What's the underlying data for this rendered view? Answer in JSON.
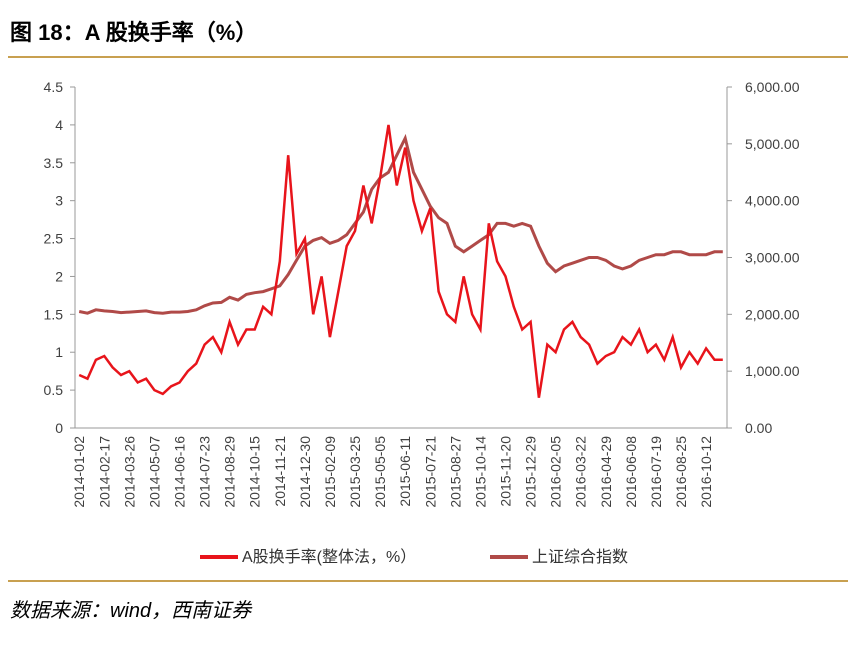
{
  "chart_data": {
    "type": "line",
    "title": "图 18：A 股换手率（%）",
    "source": "数据来源：wind，西南证券",
    "categories": [
      "2014-01-02",
      null,
      null,
      "2014-02-17",
      null,
      null,
      "2014-03-26",
      null,
      null,
      "2014-05-07",
      null,
      null,
      "2014-06-16",
      null,
      null,
      "2014-07-23",
      null,
      null,
      "2014-08-29",
      null,
      null,
      "2014-10-15",
      null,
      null,
      "2014-11-21",
      null,
      null,
      "2014-12-30",
      null,
      null,
      "2015-02-09",
      null,
      null,
      "2015-03-25",
      null,
      null,
      "2015-05-05",
      null,
      null,
      "2015-06-11",
      null,
      null,
      "2015-07-21",
      null,
      null,
      "2015-08-27",
      null,
      null,
      "2015-10-14",
      null,
      null,
      "2015-11-20",
      null,
      null,
      "2015-12-29",
      null,
      null,
      "2016-02-05",
      null,
      null,
      "2016-03-22",
      null,
      null,
      "2016-04-29",
      null,
      null,
      "2016-06-08",
      null,
      null,
      "2016-07-19",
      null,
      null,
      "2016-08-25",
      null,
      null,
      "2016-10-12",
      null,
      null
    ],
    "series": [
      {
        "name": "A股换手率(整体法，%）",
        "color": "#e8141b",
        "axis": "y",
        "values": [
          0.7,
          0.65,
          0.9,
          0.95,
          0.8,
          0.7,
          0.75,
          0.6,
          0.65,
          0.5,
          0.45,
          0.55,
          0.6,
          0.75,
          0.85,
          1.1,
          1.2,
          1.0,
          1.4,
          1.1,
          1.3,
          1.3,
          1.6,
          1.5,
          2.2,
          3.6,
          2.3,
          2.5,
          1.5,
          2.0,
          1.2,
          1.8,
          2.4,
          2.6,
          3.2,
          2.7,
          3.3,
          4.0,
          3.2,
          3.7,
          3.0,
          2.6,
          2.9,
          1.8,
          1.5,
          1.4,
          2.0,
          1.5,
          1.3,
          2.7,
          2.2,
          2.0,
          1.6,
          1.3,
          1.4,
          0.4,
          1.1,
          1.0,
          1.3,
          1.4,
          1.2,
          1.1,
          0.85,
          0.95,
          1.0,
          1.2,
          1.1,
          1.3,
          1.0,
          1.1,
          0.9,
          1.2,
          0.8,
          1.0,
          0.85,
          1.05,
          0.9,
          0.9
        ]
      },
      {
        "name": "上证综合指数",
        "color": "#b04a48",
        "axis": "y2",
        "values": [
          2050,
          2020,
          2080,
          2060,
          2050,
          2030,
          2040,
          2050,
          2060,
          2030,
          2020,
          2040,
          2040,
          2050,
          2080,
          2150,
          2200,
          2210,
          2300,
          2250,
          2350,
          2380,
          2400,
          2450,
          2500,
          2700,
          2950,
          3200,
          3300,
          3350,
          3250,
          3300,
          3400,
          3600,
          3800,
          4200,
          4400,
          4500,
          4800,
          5100,
          4500,
          4200,
          3900,
          3700,
          3600,
          3200,
          3100,
          3200,
          3300,
          3400,
          3600,
          3600,
          3550,
          3600,
          3550,
          3200,
          2900,
          2750,
          2850,
          2900,
          2950,
          3000,
          3000,
          2950,
          2850,
          2800,
          2850,
          2950,
          3000,
          3050,
          3050,
          3100,
          3100,
          3050,
          3050,
          3050,
          3100,
          3100
        ]
      }
    ],
    "ylim": [
      0,
      4.5
    ],
    "yticks": [
      0,
      0.5,
      1,
      1.5,
      2,
      2.5,
      3,
      3.5,
      4,
      4.5
    ],
    "y2lim": [
      0,
      6000
    ],
    "y2ticks": [
      {
        "value": 0,
        "label": "0.00"
      },
      {
        "value": 1000,
        "label": "1,000.00"
      },
      {
        "value": 2000,
        "label": "2,000.00"
      },
      {
        "value": 3000,
        "label": "3,000.00"
      },
      {
        "value": 4000,
        "label": "4,000.00"
      },
      {
        "value": 5000,
        "label": "5,000.00"
      },
      {
        "value": 6000,
        "label": "6,000.00"
      }
    ],
    "legend": "bottom"
  }
}
